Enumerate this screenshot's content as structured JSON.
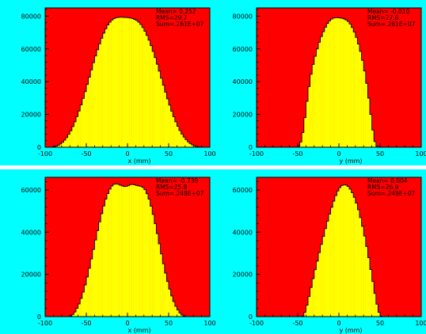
{
  "colors": {
    "pad_background": "#00ffff",
    "frame_fill": "#ff0000",
    "histogram_fill": "#ffff00",
    "histogram_line": "#000000"
  },
  "chart_data": [
    {
      "type": "histogram",
      "xlabel": "x (mm)",
      "xlim": [
        -100,
        100
      ],
      "ylim": [
        0,
        85000
      ],
      "x_ticks": [
        "-100",
        "-50",
        "0",
        "50",
        "100"
      ],
      "y_ticks": [
        "0",
        "20000",
        "40000",
        "60000",
        "80000"
      ],
      "stats": {
        "mean": "Mean=  0.252",
        "rms": "RMS=29.7",
        "sum": "Sum=.261E+07"
      },
      "bin_width": 2.5,
      "x": [
        -100,
        -97.5,
        -95,
        -92.5,
        -90,
        -87.5,
        -85,
        -82.5,
        -80,
        -77.5,
        -75,
        -72.5,
        -70,
        -67.5,
        -65,
        -62.5,
        -60,
        -57.5,
        -55,
        -52.5,
        -50,
        -47.5,
        -45,
        -42.5,
        -40,
        -37.5,
        -35,
        -32.5,
        -30,
        -27.5,
        -25,
        -22.5,
        -20,
        -17.5,
        -15,
        -12.5,
        -10,
        -7.5,
        -5,
        -2.5,
        0,
        2.5,
        5,
        7.5,
        10,
        12.5,
        15,
        17.5,
        20,
        22.5,
        25,
        27.5,
        30,
        32.5,
        35,
        37.5,
        40,
        42.5,
        45,
        47.5,
        50,
        52.5,
        55,
        57.5,
        60,
        62.5,
        65,
        67.5,
        70,
        72.5,
        75,
        77.5,
        80,
        82.5,
        85,
        87.5,
        90,
        92.5,
        95,
        97.5
      ],
      "values": [
        0,
        0,
        0,
        0,
        300,
        700,
        1200,
        2000,
        3000,
        4300,
        5900,
        7900,
        10000,
        12600,
        15500,
        18700,
        22100,
        25800,
        29800,
        33900,
        38300,
        42700,
        47200,
        51600,
        55700,
        59500,
        63100,
        66500,
        69600,
        72300,
        74600,
        76300,
        77600,
        78500,
        79000,
        79200,
        79300,
        79300,
        79200,
        79100,
        79000,
        78800,
        78500,
        78000,
        77300,
        76300,
        74900,
        73000,
        70800,
        68200,
        65300,
        62000,
        58500,
        54700,
        50600,
        46400,
        42100,
        37800,
        33600,
        29500,
        25700,
        22000,
        18600,
        15500,
        12700,
        10200,
        8000,
        6200,
        4600,
        3300,
        2300,
        1500,
        900,
        500,
        200,
        0,
        0,
        0,
        0,
        0
      ]
    },
    {
      "type": "histogram",
      "xlabel": "y (mm)",
      "xlim": [
        -100,
        100
      ],
      "ylim": [
        0,
        85000
      ],
      "x_ticks": [
        "-100",
        "-50",
        "0",
        "50",
        "100"
      ],
      "y_ticks": [
        "0",
        "20000",
        "40000",
        "60000",
        "80000"
      ],
      "stats": {
        "mean": "Mean=  -0.010",
        "rms": "RMS=27.6",
        "sum": "Sum=.261E+07"
      },
      "bin_width": 2.5,
      "x": [
        -100,
        -97.5,
        -95,
        -92.5,
        -90,
        -87.5,
        -85,
        -82.5,
        -80,
        -77.5,
        -75,
        -72.5,
        -70,
        -67.5,
        -65,
        -62.5,
        -60,
        -57.5,
        -55,
        -52.5,
        -50,
        -47.5,
        -45,
        -42.5,
        -40,
        -37.5,
        -35,
        -32.5,
        -30,
        -27.5,
        -25,
        -22.5,
        -20,
        -17.5,
        -15,
        -12.5,
        -10,
        -7.5,
        -5,
        -2.5,
        0,
        2.5,
        5,
        7.5,
        10,
        12.5,
        15,
        17.5,
        20,
        22.5,
        25,
        27.5,
        30,
        32.5,
        35,
        37.5,
        40,
        42.5,
        45,
        47.5,
        50,
        52.5,
        55,
        57.5,
        60,
        62.5,
        65,
        67.5,
        70,
        72.5,
        75,
        77.5,
        80,
        82.5,
        85,
        87.5,
        90,
        92.5,
        95,
        97.5
      ],
      "values": [
        0,
        0,
        0,
        0,
        0,
        0,
        0,
        0,
        0,
        0,
        0,
        0,
        0,
        0,
        0,
        0,
        0,
        0,
        0,
        0,
        600,
        3200,
        9000,
        18000,
        28000,
        37000,
        44500,
        50500,
        55500,
        60000,
        64000,
        67500,
        70500,
        73200,
        75500,
        77100,
        78200,
        78800,
        79000,
        79000,
        78900,
        78700,
        78300,
        77700,
        76700,
        75200,
        73000,
        70300,
        67000,
        63000,
        58500,
        53000,
        46500,
        39000,
        30000,
        20000,
        10500,
        3500,
        600,
        0,
        0,
        0,
        0,
        0,
        0,
        0,
        0,
        0,
        0,
        0,
        0,
        0,
        0,
        0,
        0,
        0,
        0,
        0,
        0,
        0
      ]
    },
    {
      "type": "histogram",
      "xlabel": "x (mm)",
      "xlim": [
        -100,
        100
      ],
      "ylim": [
        0,
        66000
      ],
      "x_ticks": [
        "-100",
        "-50",
        "0",
        "50",
        "100"
      ],
      "y_ticks": [
        "0",
        "20000",
        "40000",
        "60000"
      ],
      "stats": {
        "mean": "Mean=  -0.739",
        "rms": "RMS=25.8",
        "sum": "Sum=.249E+07"
      },
      "bin_width": 2.5,
      "x": [
        -100,
        -97.5,
        -95,
        -92.5,
        -90,
        -87.5,
        -85,
        -82.5,
        -80,
        -77.5,
        -75,
        -72.5,
        -70,
        -67.5,
        -65,
        -62.5,
        -60,
        -57.5,
        -55,
        -52.5,
        -50,
        -47.5,
        -45,
        -42.5,
        -40,
        -37.5,
        -35,
        -32.5,
        -30,
        -27.5,
        -25,
        -22.5,
        -20,
        -17.5,
        -15,
        -12.5,
        -10,
        -7.5,
        -5,
        -2.5,
        0,
        2.5,
        5,
        7.5,
        10,
        12.5,
        15,
        17.5,
        20,
        22.5,
        25,
        27.5,
        30,
        32.5,
        35,
        37.5,
        40,
        42.5,
        45,
        47.5,
        50,
        52.5,
        55,
        57.5,
        60,
        62.5,
        65,
        67.5,
        70,
        72.5,
        75,
        77.5,
        80,
        82.5,
        85,
        87.5,
        90,
        92.5,
        95,
        97.5
      ],
      "values": [
        0,
        0,
        0,
        0,
        0,
        0,
        0,
        0,
        0,
        0,
        0,
        0,
        300,
        1000,
        2200,
        3900,
        6000,
        8600,
        11600,
        15000,
        18800,
        22900,
        27300,
        31800,
        36300,
        40700,
        44900,
        48800,
        52400,
        55600,
        58300,
        60400,
        61900,
        62700,
        62900,
        62700,
        62300,
        61900,
        61600,
        61700,
        62100,
        62500,
        62600,
        62400,
        62100,
        61900,
        61700,
        61200,
        60100,
        58200,
        55600,
        52300,
        48400,
        44000,
        39300,
        34500,
        29700,
        25000,
        20600,
        16600,
        13000,
        9800,
        7100,
        4900,
        3100,
        1700,
        800,
        200,
        0,
        0,
        0,
        0,
        0,
        0,
        0,
        0,
        0,
        0,
        0,
        0
      ]
    },
    {
      "type": "histogram",
      "xlabel": "y (mm)",
      "xlim": [
        -100,
        100
      ],
      "ylim": [
        0,
        66000
      ],
      "x_ticks": [
        "-100",
        "-50",
        "0",
        "50",
        "100"
      ],
      "y_ticks": [
        "0",
        "20000",
        "40000",
        "60000"
      ],
      "stats": {
        "mean": "Mean=  0.004",
        "rms": "RMS=26.9",
        "sum": "Sum=.249E+07"
      },
      "bin_width": 2.5,
      "x": [
        -100,
        -97.5,
        -95,
        -92.5,
        -90,
        -87.5,
        -85,
        -82.5,
        -80,
        -77.5,
        -75,
        -72.5,
        -70,
        -67.5,
        -65,
        -62.5,
        -60,
        -57.5,
        -55,
        -52.5,
        -50,
        -47.5,
        -45,
        -42.5,
        -40,
        -37.5,
        -35,
        -32.5,
        -30,
        -27.5,
        -25,
        -22.5,
        -20,
        -17.5,
        -15,
        -12.5,
        -10,
        -7.5,
        -5,
        -2.5,
        0,
        2.5,
        5,
        7.5,
        10,
        12.5,
        15,
        17.5,
        20,
        22.5,
        25,
        27.5,
        30,
        32.5,
        35,
        37.5,
        40,
        42.5,
        45,
        47.5,
        50,
        52.5,
        55,
        57.5,
        60,
        62.5,
        65,
        67.5,
        70,
        72.5,
        75,
        77.5,
        80,
        82.5,
        85,
        87.5,
        90,
        92.5,
        95,
        97.5
      ],
      "values": [
        0,
        0,
        0,
        0,
        0,
        0,
        0,
        0,
        0,
        0,
        0,
        0,
        0,
        0,
        0,
        0,
        0,
        0,
        0,
        0,
        0,
        0,
        200,
        2000,
        5400,
        9500,
        13800,
        18000,
        22200,
        26300,
        30300,
        34200,
        38000,
        41700,
        45200,
        48600,
        51800,
        54700,
        57300,
        59500,
        61100,
        62100,
        62500,
        62300,
        61600,
        60400,
        58700,
        56500,
        53800,
        50600,
        46900,
        42800,
        38200,
        33200,
        27900,
        22300,
        16600,
        11000,
        5900,
        2000,
        200,
        0,
        0,
        0,
        0,
        0,
        0,
        0,
        0,
        0,
        0,
        0,
        0,
        0,
        0,
        0,
        0,
        0,
        0,
        0
      ]
    }
  ]
}
